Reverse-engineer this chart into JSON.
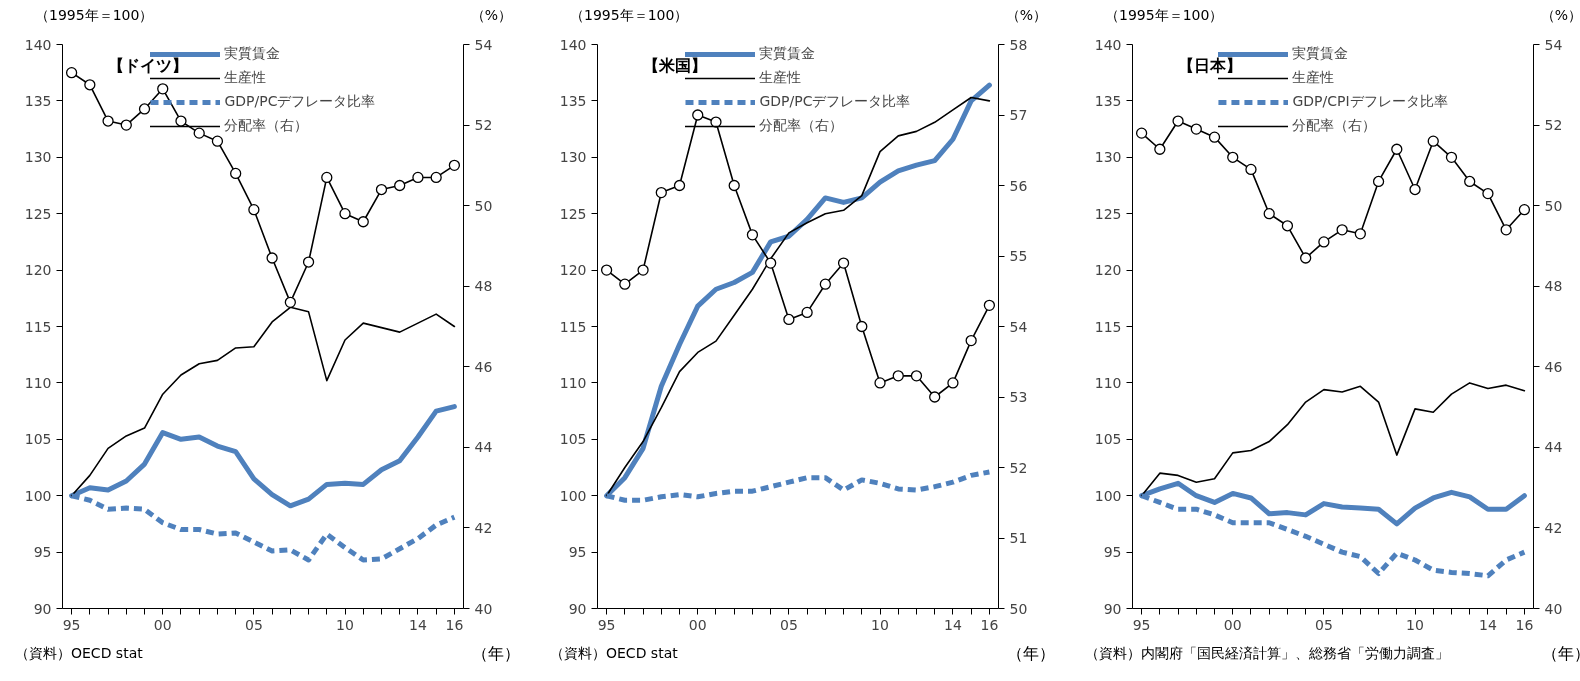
{
  "chart_data": [
    {
      "type": "line",
      "title": "【ドイツ】",
      "ylabel": "（1995年＝100）",
      "y2label": "（%）",
      "xlabel": "（年）",
      "annotations": [
        "（資料）OECD stat"
      ],
      "x": [
        1995,
        1996,
        1997,
        1998,
        1999,
        2000,
        2001,
        2002,
        2003,
        2004,
        2005,
        2006,
        2007,
        2008,
        2009,
        2010,
        2011,
        2012,
        2013,
        2014,
        2015,
        2016
      ],
      "xlim": [
        1994.5,
        2016.5
      ],
      "xticks": [
        {
          "value": 1995,
          "label": "95"
        },
        {
          "value": 1996,
          "label": null
        },
        {
          "value": 1997,
          "label": null
        },
        {
          "value": 1998,
          "label": null
        },
        {
          "value": 1999,
          "label": null
        },
        {
          "value": 2000,
          "label": "00"
        },
        {
          "value": 2001,
          "label": null
        },
        {
          "value": 2002,
          "label": null
        },
        {
          "value": 2003,
          "label": null
        },
        {
          "value": 2004,
          "label": null
        },
        {
          "value": 2005,
          "label": "05"
        },
        {
          "value": 2006,
          "label": null
        },
        {
          "value": 2007,
          "label": null
        },
        {
          "value": 2008,
          "label": null
        },
        {
          "value": 2009,
          "label": null
        },
        {
          "value": 2010,
          "label": "10"
        },
        {
          "value": 2011,
          "label": null
        },
        {
          "value": 2012,
          "label": null
        },
        {
          "value": 2013,
          "label": null
        },
        {
          "value": 2014,
          "label": "14"
        },
        {
          "value": 2015,
          "label": null
        },
        {
          "value": 2016,
          "label": "16"
        }
      ],
      "ylim": [
        90,
        140
      ],
      "yticks": [
        90,
        95,
        100,
        105,
        110,
        115,
        120,
        125,
        130,
        135,
        140
      ],
      "y2lim": [
        40,
        54
      ],
      "y2ticks": [
        40,
        42,
        44,
        46,
        48,
        50,
        52,
        54
      ],
      "legend": "top",
      "series": [
        {
          "name": "実質賃金",
          "color": "#4f81bd",
          "line_style": "solid",
          "marker": "none",
          "values": [
            100,
            100.7,
            100.5,
            101.3,
            102.8,
            105.6,
            105.0,
            105.2,
            104.4,
            103.9,
            101.5,
            100.1,
            99.1,
            99.7,
            101.0,
            101.1,
            101.0,
            102.3,
            103.1,
            105.2,
            107.5,
            107.9
          ]
        },
        {
          "name": "生産性",
          "color": "#000000",
          "line_style": "solid",
          "marker": "none",
          "values": [
            100,
            101.8,
            104.2,
            105.3,
            106.0,
            109.0,
            110.7,
            111.7,
            112.0,
            113.1,
            113.2,
            115.4,
            116.7,
            116.3,
            110.2,
            113.8,
            115.3,
            114.9,
            114.5,
            115.3,
            116.1,
            115.0
          ]
        },
        {
          "name": "GDP/PCデフレータ比率",
          "color": "#4f81bd",
          "line_style": "dashed",
          "marker": "none",
          "values": [
            100,
            99.6,
            98.8,
            98.9,
            98.8,
            97.6,
            97.0,
            97.0,
            96.6,
            96.7,
            95.9,
            95.1,
            95.2,
            94.3,
            96.6,
            95.4,
            94.3,
            94.4,
            95.3,
            96.2,
            97.4,
            98.1
          ]
        },
        {
          "name": "分配率（右）",
          "color": "#000000",
          "line_style": "solid",
          "marker": "circle",
          "axis": "y2",
          "values": [
            53.3,
            53.0,
            52.1,
            52.0,
            52.4,
            52.9,
            52.1,
            51.8,
            51.6,
            50.8,
            49.9,
            48.7,
            47.6,
            48.6,
            50.7,
            49.8,
            49.6,
            50.4,
            50.5,
            50.7,
            50.7,
            51.0
          ]
        }
      ]
    },
    {
      "type": "line",
      "title": "【米国】",
      "ylabel": "（1995年＝100）",
      "y2label": "（%）",
      "xlabel": "（年）",
      "annotations": [
        "（資料）OECD stat"
      ],
      "x": [
        1995,
        1996,
        1997,
        1998,
        1999,
        2000,
        2001,
        2002,
        2003,
        2004,
        2005,
        2006,
        2007,
        2008,
        2009,
        2010,
        2011,
        2012,
        2013,
        2014,
        2015,
        2016
      ],
      "xlim": [
        1994.5,
        2016.5
      ],
      "xticks": [
        {
          "value": 1995,
          "label": "95"
        },
        {
          "value": 1996,
          "label": null
        },
        {
          "value": 1997,
          "label": null
        },
        {
          "value": 1998,
          "label": null
        },
        {
          "value": 1999,
          "label": null
        },
        {
          "value": 2000,
          "label": "00"
        },
        {
          "value": 2001,
          "label": null
        },
        {
          "value": 2002,
          "label": null
        },
        {
          "value": 2003,
          "label": null
        },
        {
          "value": 2004,
          "label": null
        },
        {
          "value": 2005,
          "label": "05"
        },
        {
          "value": 2006,
          "label": null
        },
        {
          "value": 2007,
          "label": null
        },
        {
          "value": 2008,
          "label": null
        },
        {
          "value": 2009,
          "label": null
        },
        {
          "value": 2010,
          "label": "10"
        },
        {
          "value": 2011,
          "label": null
        },
        {
          "value": 2012,
          "label": null
        },
        {
          "value": 2013,
          "label": null
        },
        {
          "value": 2014,
          "label": "14"
        },
        {
          "value": 2015,
          "label": null
        },
        {
          "value": 2016,
          "label": "16"
        }
      ],
      "ylim": [
        90,
        140
      ],
      "yticks": [
        90,
        95,
        100,
        105,
        110,
        115,
        120,
        125,
        130,
        135,
        140
      ],
      "y2lim": [
        50,
        58
      ],
      "y2ticks": [
        50,
        51,
        52,
        53,
        54,
        55,
        56,
        57,
        58
      ],
      "legend": "top",
      "series": [
        {
          "name": "実質賃金",
          "color": "#4f81bd",
          "line_style": "solid",
          "marker": "none",
          "values": [
            100,
            101.6,
            104.2,
            109.7,
            113.4,
            116.8,
            118.3,
            118.9,
            119.8,
            122.5,
            123.0,
            124.5,
            126.4,
            126.0,
            126.4,
            127.8,
            128.8,
            129.3,
            129.7,
            131.6,
            135.0,
            136.4
          ]
        },
        {
          "name": "生産性",
          "color": "#000000",
          "line_style": "solid",
          "marker": "none",
          "values": [
            100,
            102.5,
            104.8,
            107.8,
            111.0,
            112.7,
            113.7,
            116.0,
            118.3,
            121.0,
            123.3,
            124.2,
            125.0,
            125.3,
            126.6,
            130.5,
            131.9,
            132.3,
            133.1,
            134.2,
            135.3,
            135.0
          ]
        },
        {
          "name": "GDP/PCデフレータ比率",
          "color": "#4f81bd",
          "line_style": "dashed",
          "marker": "none",
          "values": [
            100,
            99.6,
            99.6,
            99.9,
            100.1,
            99.9,
            100.2,
            100.4,
            100.4,
            100.8,
            101.2,
            101.6,
            101.6,
            100.5,
            101.4,
            101.1,
            100.6,
            100.5,
            100.8,
            101.2,
            101.8,
            102.1
          ]
        },
        {
          "name": "分配率（右）",
          "color": "#000000",
          "line_style": "solid",
          "marker": "circle",
          "axis": "y2",
          "values": [
            54.8,
            54.6,
            54.8,
            55.9,
            56.0,
            57.0,
            56.9,
            56.0,
            55.3,
            54.9,
            54.1,
            54.2,
            54.6,
            54.9,
            54.0,
            53.2,
            53.3,
            53.3,
            53.0,
            53.2,
            53.8,
            54.3
          ]
        }
      ]
    },
    {
      "type": "line",
      "title": "【日本】",
      "ylabel": "（1995年＝100）",
      "y2label": "（%）",
      "xlabel": "（年）",
      "annotations": [
        "（資料）内閣府「国民経済計算」、総務省「労働力調査」"
      ],
      "x": [
        1995,
        1996,
        1997,
        1998,
        1999,
        2000,
        2001,
        2002,
        2003,
        2004,
        2005,
        2006,
        2007,
        2008,
        2009,
        2010,
        2011,
        2012,
        2013,
        2014,
        2015,
        2016
      ],
      "xlim": [
        1994.5,
        2016.5
      ],
      "xticks": [
        {
          "value": 1995,
          "label": "95"
        },
        {
          "value": 1996,
          "label": null
        },
        {
          "value": 1997,
          "label": null
        },
        {
          "value": 1998,
          "label": null
        },
        {
          "value": 1999,
          "label": null
        },
        {
          "value": 2000,
          "label": "00"
        },
        {
          "value": 2001,
          "label": null
        },
        {
          "value": 2002,
          "label": null
        },
        {
          "value": 2003,
          "label": null
        },
        {
          "value": 2004,
          "label": null
        },
        {
          "value": 2005,
          "label": "05"
        },
        {
          "value": 2006,
          "label": null
        },
        {
          "value": 2007,
          "label": null
        },
        {
          "value": 2008,
          "label": null
        },
        {
          "value": 2009,
          "label": null
        },
        {
          "value": 2010,
          "label": "10"
        },
        {
          "value": 2011,
          "label": null
        },
        {
          "value": 2012,
          "label": null
        },
        {
          "value": 2013,
          "label": null
        },
        {
          "value": 2014,
          "label": "14"
        },
        {
          "value": 2015,
          "label": null
        },
        {
          "value": 2016,
          "label": "16"
        }
      ],
      "ylim": [
        90,
        140
      ],
      "yticks": [
        90,
        95,
        100,
        105,
        110,
        115,
        120,
        125,
        130,
        135,
        140
      ],
      "y2lim": [
        40,
        54
      ],
      "y2ticks": [
        40,
        42,
        44,
        46,
        48,
        50,
        52,
        54
      ],
      "legend": "top",
      "series": [
        {
          "name": "実質賃金",
          "color": "#4f81bd",
          "line_style": "solid",
          "marker": "none",
          "values": [
            100,
            100.6,
            101.1,
            100.0,
            99.4,
            100.2,
            99.8,
            98.4,
            98.5,
            98.3,
            99.3,
            99.0,
            98.9,
            98.8,
            97.5,
            98.9,
            99.8,
            100.3,
            99.9,
            98.8,
            98.8,
            100.0
          ]
        },
        {
          "name": "生産性",
          "color": "#000000",
          "line_style": "solid",
          "marker": "none",
          "values": [
            100,
            102.0,
            101.8,
            101.2,
            101.5,
            103.8,
            104.0,
            104.8,
            106.3,
            108.3,
            109.4,
            109.2,
            109.7,
            108.3,
            103.6,
            107.7,
            107.4,
            109.0,
            110.0,
            109.5,
            109.8,
            109.3
          ]
        },
        {
          "name": "GDP/CPIデフレータ比率",
          "color": "#4f81bd",
          "line_style": "dashed",
          "marker": "none",
          "values": [
            100,
            99.4,
            98.8,
            98.8,
            98.3,
            97.6,
            97.6,
            97.6,
            97.0,
            96.4,
            95.7,
            95.0,
            94.6,
            93.1,
            94.9,
            94.3,
            93.4,
            93.2,
            93.1,
            92.9,
            94.3,
            95.0
          ]
        },
        {
          "name": "分配率（右）",
          "color": "#000000",
          "line_style": "solid",
          "marker": "circle",
          "axis": "y2",
          "values": [
            51.8,
            51.4,
            52.1,
            51.9,
            51.7,
            51.2,
            50.9,
            49.8,
            49.5,
            48.7,
            49.1,
            49.4,
            49.3,
            50.6,
            51.4,
            50.4,
            51.6,
            51.2,
            50.6,
            50.3,
            49.4,
            49.9
          ]
        }
      ]
    }
  ]
}
